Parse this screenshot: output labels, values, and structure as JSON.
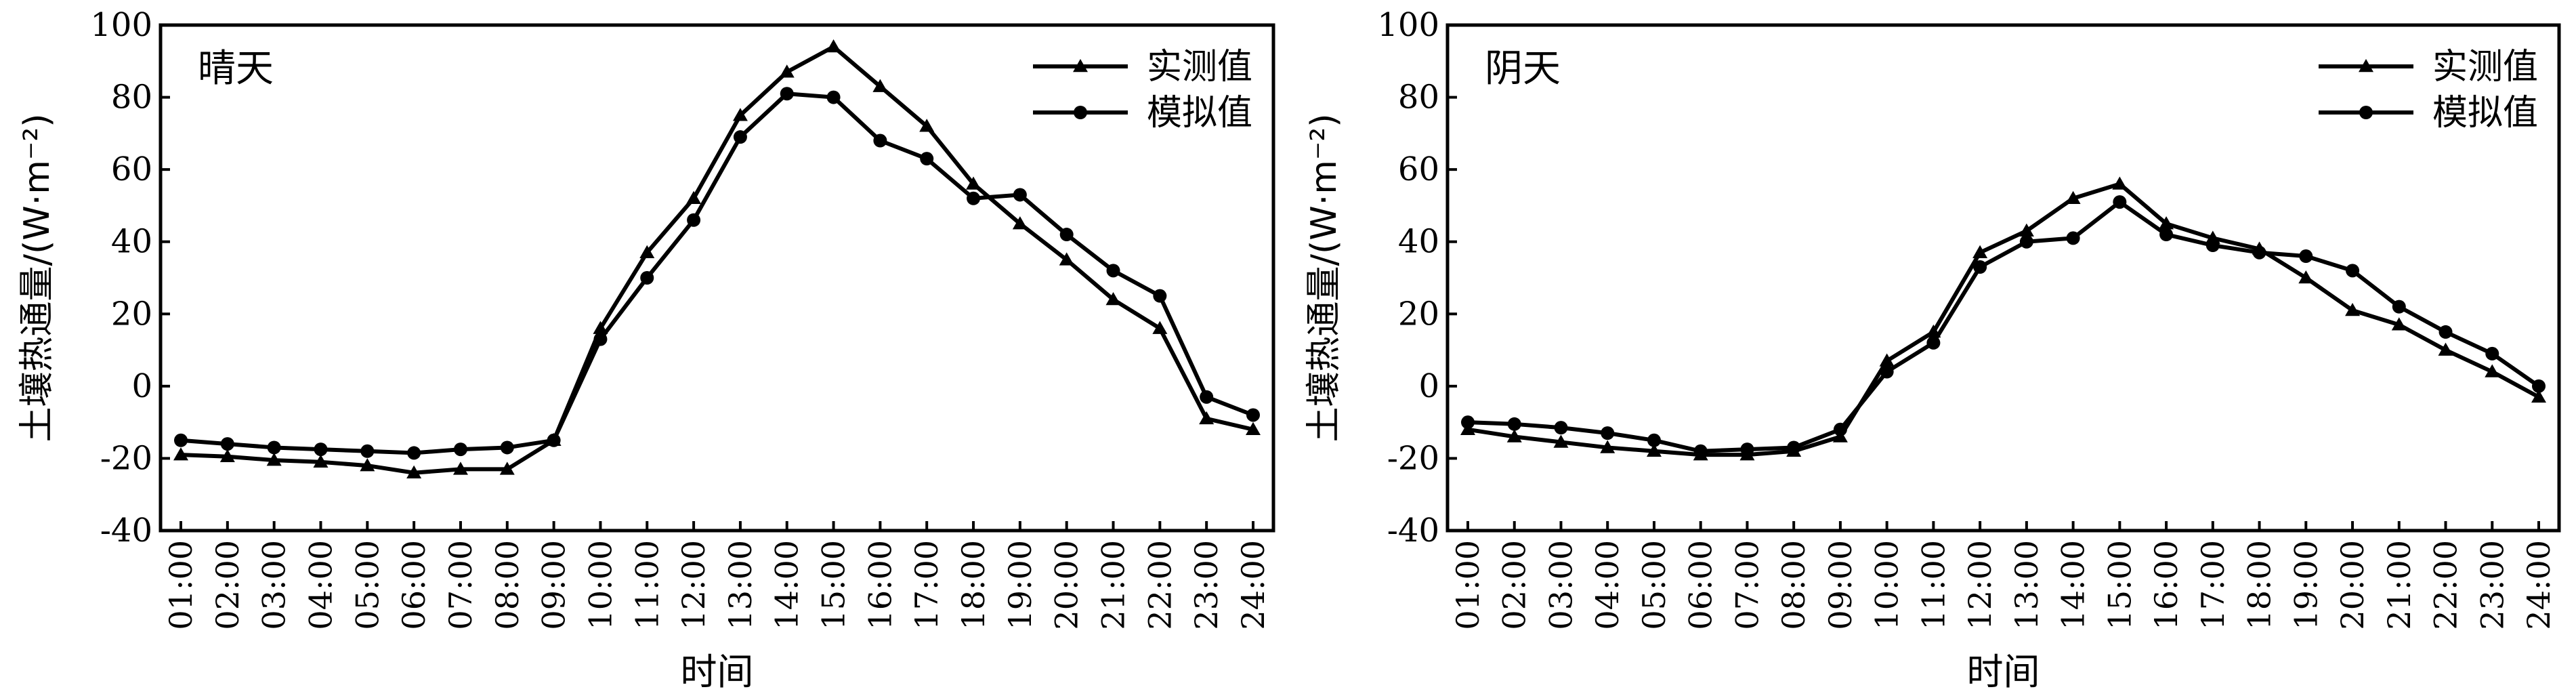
{
  "chart_data": [
    {
      "type": "line",
      "panel_label": "晴天",
      "xlabel": "时间",
      "ylabel": "土壤热通量/(W·m⁻²)",
      "ylim": [
        -40,
        100
      ],
      "yticks": [
        "-40",
        "-20",
        "0",
        "20",
        "40",
        "60",
        "80",
        "100"
      ],
      "categories": [
        "01:00",
        "02:00",
        "03:00",
        "04:00",
        "05:00",
        "06:00",
        "07:00",
        "08:00",
        "09:00",
        "10:00",
        "11:00",
        "12:00",
        "13:00",
        "14:00",
        "15:00",
        "16:00",
        "17:00",
        "18:00",
        "19:00",
        "20:00",
        "21:00",
        "22:00",
        "23:00",
        "24:00"
      ],
      "legend_position": "top-right",
      "series": [
        {
          "name": "实测值",
          "marker": "triangle",
          "values": [
            -19,
            -19.5,
            -20.5,
            -21,
            -22,
            -24,
            -23,
            -23,
            -15,
            16,
            37,
            52,
            75,
            87,
            94,
            83,
            72,
            56,
            45,
            35,
            24,
            16,
            -9,
            -12
          ]
        },
        {
          "name": "模拟值",
          "marker": "circle",
          "values": [
            -15,
            -16,
            -17,
            -17.5,
            -18,
            -18.5,
            -17.5,
            -17,
            -15,
            13,
            30,
            46,
            69,
            81,
            80,
            68,
            63,
            52,
            53,
            42,
            32,
            25,
            -3,
            -8
          ]
        }
      ]
    },
    {
      "type": "line",
      "panel_label": "阴天",
      "xlabel": "时间",
      "ylabel": "土壤热通量/(W·m⁻²)",
      "ylim": [
        -40,
        100
      ],
      "yticks": [
        "-40",
        "-20",
        "0",
        "20",
        "40",
        "60",
        "80",
        "100"
      ],
      "categories": [
        "01:00",
        "02:00",
        "03:00",
        "04:00",
        "05:00",
        "06:00",
        "07:00",
        "08:00",
        "09:00",
        "10:00",
        "11:00",
        "12:00",
        "13:00",
        "14:00",
        "15:00",
        "16:00",
        "17:00",
        "18:00",
        "19:00",
        "20:00",
        "21:00",
        "22:00",
        "23:00",
        "24:00"
      ],
      "legend_position": "top-right",
      "series": [
        {
          "name": "实测值",
          "marker": "triangle",
          "values": [
            -12,
            -14,
            -15.5,
            -17,
            -18,
            -19,
            -19,
            -18,
            -14,
            7,
            15,
            37,
            43,
            52,
            56,
            45,
            41,
            38,
            30,
            21,
            17,
            10,
            4,
            -3
          ]
        },
        {
          "name": "模拟值",
          "marker": "circle",
          "values": [
            -10,
            -10.5,
            -11.5,
            -13,
            -15,
            -18,
            -17.5,
            -17,
            -12,
            4,
            12,
            33,
            40,
            41,
            51,
            42,
            39,
            37,
            36,
            32,
            22,
            15,
            9,
            0
          ]
        }
      ]
    }
  ]
}
